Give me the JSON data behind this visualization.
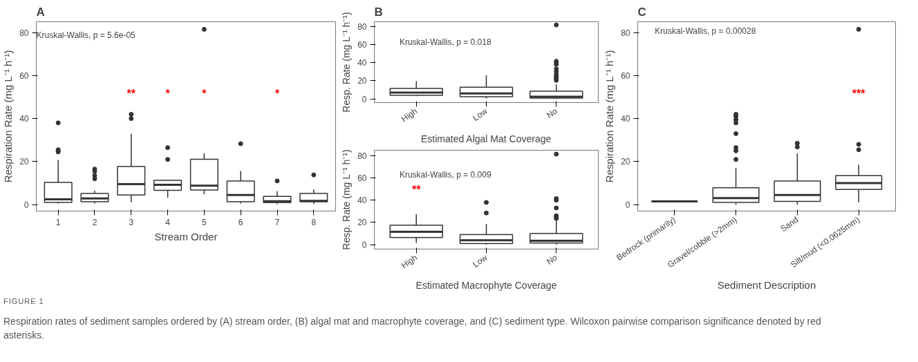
{
  "chart_data": [
    {
      "type": "box",
      "title": "A",
      "xlabel": "Stream Order",
      "ylabel": "Respiration Rate (mg L⁻¹ h⁻¹)",
      "categories": [
        "1",
        "2",
        "3",
        "4",
        "5",
        "6",
        "7",
        "8"
      ],
      "boxes": [
        {
          "low": 0.5,
          "q1": 1.0,
          "median": 2.5,
          "q3": 10.3,
          "high": 20.7,
          "outliers": [
            24.5,
            25,
            25.5,
            38
          ]
        },
        {
          "low": 0.5,
          "q1": 1.3,
          "median": 2.9,
          "q3": 5.2,
          "high": 6.5,
          "outliers": [
            12,
            13.5,
            15.5,
            16.5
          ]
        },
        {
          "low": 1,
          "q1": 4.5,
          "median": 9.5,
          "q3": 17.7,
          "high": 33,
          "outliers": [
            40,
            42
          ]
        },
        {
          "low": 3.2,
          "q1": 6.6,
          "median": 9.2,
          "q3": 11.3,
          "high": 11.3,
          "outliers": [
            21,
            26.5
          ]
        },
        {
          "low": 4.8,
          "q1": 6.8,
          "median": 8.8,
          "q3": 21.1,
          "high": 23.8,
          "outliers": [
            81.5
          ]
        },
        {
          "low": 0.5,
          "q1": 1.3,
          "median": 4.5,
          "q3": 11,
          "high": 15.6,
          "outliers": [
            28.3
          ]
        },
        {
          "low": 0.2,
          "q1": 0.9,
          "median": 1.6,
          "q3": 3.8,
          "high": 6.2,
          "outliers": [
            11
          ]
        },
        {
          "low": 0.3,
          "q1": 1.3,
          "median": 1.7,
          "q3": 5.2,
          "high": 7,
          "outliers": [
            13.8
          ]
        }
      ],
      "ylim": [
        -3,
        85
      ],
      "yticks": [
        0,
        20,
        40,
        60,
        80
      ],
      "grid": false,
      "annotations": [
        "Kruskal-Wallis, p = 5.6e-05",
        "**",
        "*",
        "*",
        "*"
      ]
    },
    {
      "type": "box",
      "title": "B",
      "xlabel": "Estimated Algal Mat Coverage",
      "ylabel": "Resp. Rate (mg L⁻¹ h⁻¹)",
      "categories": [
        "High",
        "Low",
        "No"
      ],
      "boxes": [
        {
          "low": 3,
          "q1": 4,
          "median": 7,
          "q3": 11.5,
          "high": 19.5
        },
        {
          "low": 0.5,
          "q1": 2.5,
          "median": 6,
          "q3": 13,
          "high": 26
        },
        {
          "low": 0,
          "q1": 1,
          "median": 2.5,
          "q3": 8.5,
          "high": 16,
          "outliers": [
            20.5,
            22,
            23.5,
            25,
            27,
            30,
            33,
            38,
            40,
            41.5,
            81.5
          ]
        }
      ],
      "ylim": [
        -4,
        85
      ],
      "yticks": [
        0,
        20,
        40,
        60,
        80
      ],
      "grid": false,
      "annotations": [
        "Kruskal-Wallis, p = 0.018"
      ]
    },
    {
      "type": "box",
      "xlabel": "Estimated Macrophyte Coverage",
      "ylabel": "Resp. Rate (mg L⁻¹ h⁻¹)",
      "categories": [
        "High",
        "Low",
        "No"
      ],
      "boxes": [
        {
          "low": 1.5,
          "q1": 6.5,
          "median": 11.5,
          "q3": 17.5,
          "high": 27.5
        },
        {
          "low": 0,
          "q1": 1,
          "median": 4,
          "q3": 9,
          "high": 18.5,
          "outliers": [
            28.5,
            38
          ]
        },
        {
          "low": 0,
          "q1": 1.5,
          "median": 3.5,
          "q3": 10,
          "high": 22,
          "outliers": [
            23.5,
            25,
            26,
            33,
            40,
            41.5,
            81.5
          ]
        }
      ],
      "ylim": [
        -4,
        85
      ],
      "yticks": [
        0,
        20,
        40,
        60,
        80
      ],
      "grid": false,
      "annotations": [
        "Kruskal-Wallis, p = 0.009",
        "**"
      ]
    },
    {
      "type": "box",
      "title": "C",
      "xlabel": "Sediment Description",
      "ylabel": "Respiration Rate (mg L⁻¹ h⁻¹)",
      "categories": [
        "Bedrock (primarily)",
        "Gravel/cobble (>2mm)",
        "Sand",
        "Silt/mud (<0.0625mm)"
      ],
      "boxes": [
        {
          "low": 1.5,
          "q1": 1.5,
          "median": 1.5,
          "q3": 1.5,
          "high": 1.5
        },
        {
          "low": 0,
          "q1": 1,
          "median": 3,
          "q3": 7.8,
          "high": 17,
          "outliers": [
            21,
            25,
            26.5,
            33,
            38,
            39.5,
            41,
            42
          ]
        },
        {
          "low": 0,
          "q1": 1.5,
          "median": 4.5,
          "q3": 11,
          "high": 23.8,
          "outliers": [
            26.8,
            28.5
          ]
        },
        {
          "low": 1,
          "q1": 7,
          "median": 10,
          "q3": 13.5,
          "high": 18.5,
          "outliers": [
            25.5,
            28,
            81.5
          ]
        }
      ],
      "ylim": [
        -3,
        85
      ],
      "yticks": [
        0,
        20,
        40,
        60,
        80
      ],
      "grid": false,
      "annotations": [
        "Kruskal-Wallis, p = 0.00028",
        "***",
        "FIGURE 1",
        "Respiration rates of sediment samples ordered by (A) stream order, (B) algal mat and macrophyte coverage, and (C) sediment type. Wilcoxon pairwise comparison significance denoted by red asterisks."
      ]
    }
  ]
}
